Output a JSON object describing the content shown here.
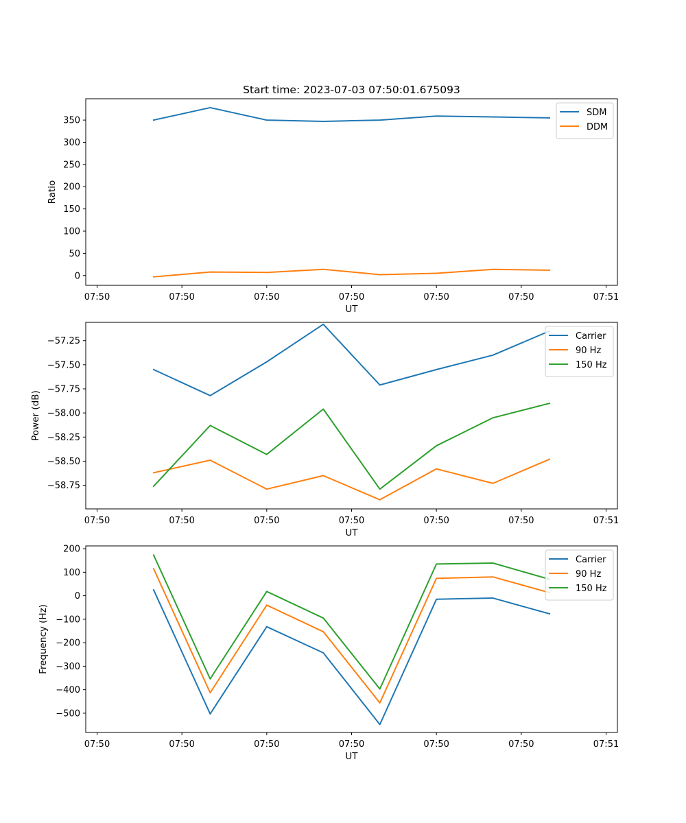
{
  "title": "Start time: 2023-07-03 07:50:01.675093",
  "chart_data": [
    {
      "type": "line",
      "title": "Start time: 2023-07-03 07:50:01.675093",
      "xlabel": "UT",
      "ylabel": "Ratio",
      "x": [
        1,
        2,
        3,
        4,
        5,
        6,
        7,
        8
      ],
      "xlim": [
        -0.2,
        9.2
      ],
      "x_ticks": [
        0,
        1.5,
        3,
        4.5,
        6,
        7.5,
        9
      ],
      "x_tick_labels": [
        "07:50",
        "07:50",
        "07:50",
        "07:50",
        "07:50",
        "07:50",
        "07:51"
      ],
      "ylim": [
        -22,
        398
      ],
      "y_ticks": [
        0,
        50,
        100,
        150,
        200,
        250,
        300,
        350
      ],
      "y_tick_labels": [
        "0",
        "50",
        "100",
        "150",
        "200",
        "250",
        "300",
        "350"
      ],
      "legend_position": "top-right",
      "series": [
        {
          "name": "SDM",
          "color": "#1f77b4",
          "values": [
            350,
            378,
            350,
            347,
            350,
            359,
            357,
            355
          ]
        },
        {
          "name": "DDM",
          "color": "#ff7f0e",
          "values": [
            -3,
            8,
            7,
            14,
            2,
            5,
            14,
            12
          ]
        }
      ]
    },
    {
      "type": "line",
      "xlabel": "UT",
      "ylabel": "Power (dB)",
      "x": [
        1,
        2,
        3,
        4,
        5,
        6,
        7,
        8
      ],
      "xlim": [
        -0.2,
        9.2
      ],
      "x_ticks": [
        0,
        1.5,
        3,
        4.5,
        6,
        7.5,
        9
      ],
      "x_tick_labels": [
        "07:50",
        "07:50",
        "07:50",
        "07:50",
        "07:50",
        "07:50",
        "07:51"
      ],
      "ylim": [
        -58.995,
        -57.06
      ],
      "y_ticks": [
        -58.75,
        -58.5,
        -58.25,
        -58.0,
        -57.75,
        -57.5,
        -57.25
      ],
      "y_tick_labels": [
        "−58.75",
        "−58.50",
        "−58.25",
        "−58.00",
        "−57.75",
        "−57.50",
        "−57.25"
      ],
      "legend_position": "top-right",
      "series": [
        {
          "name": "Carrier",
          "color": "#1f77b4",
          "values": [
            -57.55,
            -57.82,
            -57.47,
            -57.08,
            -57.71,
            -57.55,
            -57.4,
            -57.15
          ]
        },
        {
          "name": "90 Hz",
          "color": "#ff7f0e",
          "values": [
            -58.62,
            -58.49,
            -58.79,
            -58.65,
            -58.9,
            -58.58,
            -58.73,
            -58.48
          ]
        },
        {
          "name": "150 Hz",
          "color": "#2ca02c",
          "values": [
            -58.76,
            -58.13,
            -58.43,
            -57.96,
            -58.79,
            -58.34,
            -58.05,
            -57.9
          ]
        }
      ]
    },
    {
      "type": "line",
      "xlabel": "UT",
      "ylabel": "Frequency (Hz)",
      "x": [
        1,
        2,
        3,
        4,
        5,
        6,
        7,
        8
      ],
      "xlim": [
        -0.2,
        9.2
      ],
      "x_ticks": [
        0,
        1.5,
        3,
        4.5,
        6,
        7.5,
        9
      ],
      "x_tick_labels": [
        "07:50",
        "07:50",
        "07:50",
        "07:50",
        "07:50",
        "07:50",
        "07:51"
      ],
      "ylim": [
        -582,
        212
      ],
      "y_ticks": [
        -500,
        -400,
        -300,
        -200,
        -100,
        0,
        100,
        200
      ],
      "y_tick_labels": [
        "−500",
        "−400",
        "−300",
        "−200",
        "−100",
        "0",
        "100",
        "200"
      ],
      "legend_position": "top-right",
      "series": [
        {
          "name": "Carrier",
          "color": "#1f77b4",
          "values": [
            25,
            -503,
            -132,
            -243,
            -548,
            -15,
            -10,
            -77
          ]
        },
        {
          "name": "90 Hz",
          "color": "#ff7f0e",
          "values": [
            115,
            -413,
            -40,
            -153,
            -456,
            74,
            80,
            13
          ]
        },
        {
          "name": "150 Hz",
          "color": "#2ca02c",
          "values": [
            173,
            -354,
            18,
            -95,
            -397,
            135,
            139,
            70
          ]
        }
      ]
    }
  ]
}
